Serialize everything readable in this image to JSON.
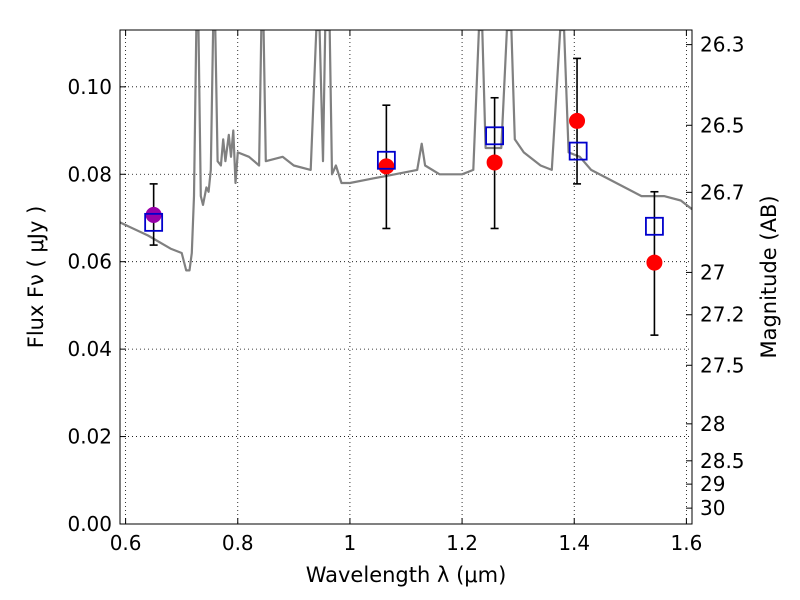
{
  "chart_data": {
    "type": "scatter",
    "xlabel": "Wavelength  λ (μm)",
    "ylabel": "Flux  Fν  ( μJy )",
    "y2label": "Magnitude (AB)",
    "xlim": [
      0.59,
      1.61
    ],
    "ylim": [
      0.0,
      0.113
    ],
    "grid": true,
    "x_ticks": [
      {
        "value": 0.6,
        "label": "0.6"
      },
      {
        "value": 0.8,
        "label": "0.8"
      },
      {
        "value": 1.0,
        "label": "1"
      },
      {
        "value": 1.2,
        "label": "1.2"
      },
      {
        "value": 1.4,
        "label": "1.4"
      },
      {
        "value": 1.6,
        "label": "1.6"
      }
    ],
    "y_ticks": [
      {
        "value": 0.0,
        "label": "0.00"
      },
      {
        "value": 0.02,
        "label": "0.02"
      },
      {
        "value": 0.04,
        "label": "0.04"
      },
      {
        "value": 0.06,
        "label": "0.06"
      },
      {
        "value": 0.08,
        "label": "0.08"
      },
      {
        "value": 0.1,
        "label": "0.10"
      }
    ],
    "y2_ticks": [
      {
        "value": 26.3,
        "label": "26.3"
      },
      {
        "value": 26.5,
        "label": "26.5"
      },
      {
        "value": 26.7,
        "label": "26.7"
      },
      {
        "value": 27.0,
        "label": "27"
      },
      {
        "value": 27.2,
        "label": "27.2"
      },
      {
        "value": 27.5,
        "label": "27.5"
      },
      {
        "value": 28.0,
        "label": "28"
      },
      {
        "value": 28.5,
        "label": "28.5"
      },
      {
        "value": 29.0,
        "label": "29"
      },
      {
        "value": 30.0,
        "label": "30"
      }
    ],
    "series": [
      {
        "kind": "line",
        "color": "#808080",
        "points": [
          [
            0.59,
            0.069
          ],
          [
            0.64,
            0.066
          ],
          [
            0.68,
            0.063
          ],
          [
            0.7,
            0.062
          ],
          [
            0.708,
            0.058
          ],
          [
            0.714,
            0.058
          ],
          [
            0.718,
            0.062
          ],
          [
            0.722,
            0.075
          ],
          [
            0.726,
            0.113
          ],
          [
            0.73,
            0.113
          ],
          [
            0.734,
            0.075
          ],
          [
            0.738,
            0.073
          ],
          [
            0.744,
            0.077
          ],
          [
            0.748,
            0.076
          ],
          [
            0.752,
            0.081
          ],
          [
            0.756,
            0.113
          ],
          [
            0.76,
            0.113
          ],
          [
            0.764,
            0.083
          ],
          [
            0.77,
            0.082
          ],
          [
            0.774,
            0.088
          ],
          [
            0.778,
            0.083
          ],
          [
            0.784,
            0.089
          ],
          [
            0.788,
            0.084
          ],
          [
            0.792,
            0.09
          ],
          [
            0.796,
            0.078
          ],
          [
            0.8,
            0.085
          ],
          [
            0.82,
            0.084
          ],
          [
            0.838,
            0.082
          ],
          [
            0.842,
            0.113
          ],
          [
            0.846,
            0.113
          ],
          [
            0.85,
            0.083
          ],
          [
            0.88,
            0.084
          ],
          [
            0.9,
            0.082
          ],
          [
            0.93,
            0.081
          ],
          [
            0.94,
            0.113
          ],
          [
            0.946,
            0.113
          ],
          [
            0.952,
            0.083
          ],
          [
            0.956,
            0.113
          ],
          [
            0.96,
            0.113
          ],
          [
            0.964,
            0.113
          ],
          [
            0.968,
            0.08
          ],
          [
            0.975,
            0.082
          ],
          [
            0.985,
            0.078
          ],
          [
            1.0,
            0.078
          ],
          [
            1.04,
            0.079
          ],
          [
            1.08,
            0.08
          ],
          [
            1.12,
            0.081
          ],
          [
            1.128,
            0.087
          ],
          [
            1.134,
            0.082
          ],
          [
            1.16,
            0.08
          ],
          [
            1.2,
            0.08
          ],
          [
            1.22,
            0.081
          ],
          [
            1.23,
            0.113
          ],
          [
            1.236,
            0.113
          ],
          [
            1.242,
            0.086
          ],
          [
            1.27,
            0.086
          ],
          [
            1.28,
            0.113
          ],
          [
            1.288,
            0.113
          ],
          [
            1.294,
            0.088
          ],
          [
            1.31,
            0.085
          ],
          [
            1.34,
            0.082
          ],
          [
            1.36,
            0.081
          ],
          [
            1.375,
            0.113
          ],
          [
            1.382,
            0.113
          ],
          [
            1.39,
            0.085
          ],
          [
            1.41,
            0.084
          ],
          [
            1.43,
            0.081
          ],
          [
            1.46,
            0.079
          ],
          [
            1.49,
            0.077
          ],
          [
            1.52,
            0.075
          ],
          [
            1.56,
            0.075
          ],
          [
            1.59,
            0.074
          ],
          [
            1.61,
            0.072
          ]
        ]
      },
      {
        "kind": "errorbar",
        "color": "#000000",
        "points": [
          {
            "x": 0.65,
            "y": 0.0707,
            "ylo": 0.0638,
            "yhi": 0.0778
          },
          {
            "x": 1.065,
            "y": 0.0818,
            "ylo": 0.0676,
            "yhi": 0.0958
          },
          {
            "x": 1.258,
            "y": 0.0827,
            "ylo": 0.0676,
            "yhi": 0.0975
          },
          {
            "x": 1.405,
            "y": 0.0922,
            "ylo": 0.0778,
            "yhi": 0.1065
          },
          {
            "x": 1.543,
            "y": 0.0598,
            "ylo": 0.0432,
            "yhi": 0.076
          }
        ]
      },
      {
        "kind": "marker",
        "marker": "circle",
        "color": "#ff0000",
        "points": [
          [
            0.65,
            0.0707
          ],
          [
            1.065,
            0.0818
          ],
          [
            1.258,
            0.0827
          ],
          [
            1.405,
            0.0922
          ],
          [
            1.543,
            0.0598
          ]
        ]
      },
      {
        "kind": "marker",
        "marker": "square",
        "color": "#0000cc",
        "points": [
          [
            0.65,
            0.069
          ],
          [
            1.065,
            0.0832
          ],
          [
            1.258,
            0.0888
          ],
          [
            1.407,
            0.0853
          ],
          [
            1.543,
            0.0681
          ]
        ]
      }
    ]
  }
}
